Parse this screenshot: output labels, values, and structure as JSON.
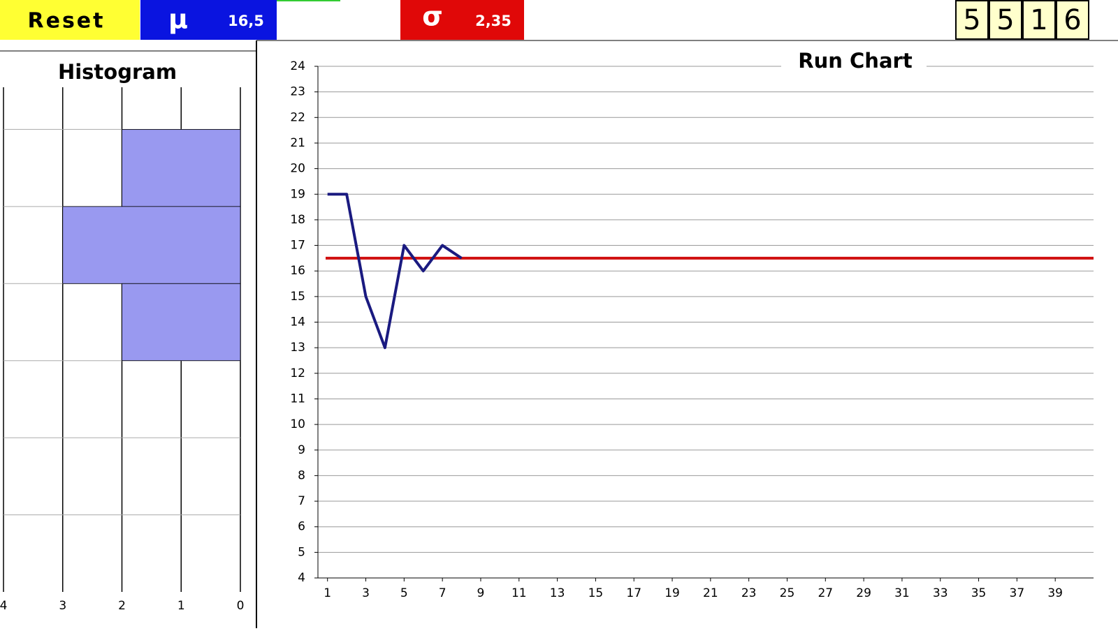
{
  "toolbar": {
    "reset": "Reset",
    "mu_symbol": "μ",
    "mu_value": "16,5",
    "sigma_symbol": "σ",
    "sigma_value": "2,35",
    "digits": [
      "5",
      "5",
      "1",
      "6"
    ]
  },
  "chart_data": [
    {
      "type": "histogram",
      "title": "Histogram",
      "orientation": "horizontal",
      "categories": [
        null,
        null,
        null,
        null,
        null,
        null,
        null
      ],
      "values": [
        0,
        2,
        3,
        2,
        0,
        0,
        0
      ],
      "color": "#9999f0",
      "xlim": [
        4,
        0
      ],
      "xticks": [
        4,
        3,
        2,
        1,
        0
      ],
      "grid": true
    },
    {
      "type": "line",
      "title": "Run Chart",
      "x": [
        1,
        2,
        3,
        4,
        5,
        6,
        7,
        8
      ],
      "values": [
        19,
        19,
        15,
        13,
        17,
        16,
        17,
        16.5
      ],
      "color": "#1a1a80",
      "mean_line": 16.5,
      "mean_color": "#d01010",
      "xlim": [
        0.5,
        41
      ],
      "xticks": [
        1,
        3,
        5,
        7,
        9,
        11,
        13,
        15,
        17,
        19,
        21,
        23,
        25,
        27,
        29,
        31,
        33,
        35,
        37,
        39
      ],
      "ylim": [
        4,
        24
      ],
      "yticks": [
        4,
        5,
        6,
        7,
        8,
        9,
        10,
        11,
        12,
        13,
        14,
        15,
        16,
        17,
        18,
        19,
        20,
        21,
        22,
        23,
        24
      ],
      "grid": true
    }
  ]
}
